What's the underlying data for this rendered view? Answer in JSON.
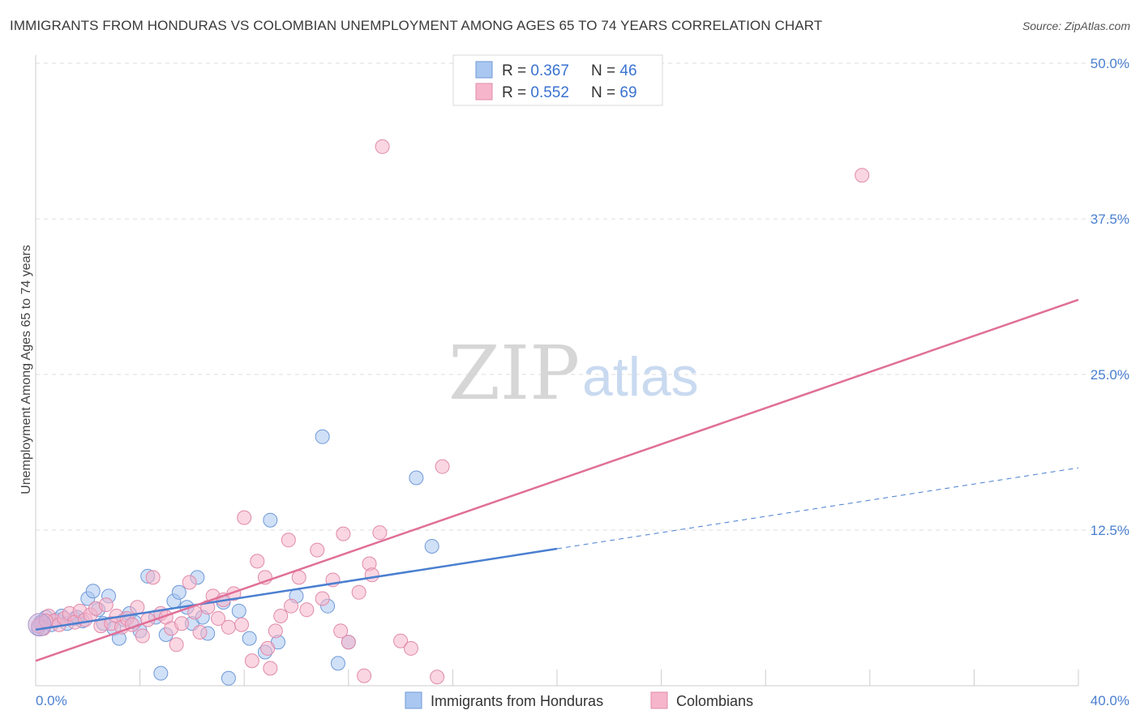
{
  "title": "IMMIGRANTS FROM HONDURAS VS COLOMBIAN UNEMPLOYMENT AMONG AGES 65 TO 74 YEARS CORRELATION CHART",
  "source": "Source: ZipAtlas.com",
  "watermark": {
    "zip": "ZIP",
    "atlas": "atlas"
  },
  "colors": {
    "blue": "#4a7fd0",
    "blue_fill": "#a9c7f0",
    "pink": "#e06f97",
    "pink_fill": "#f6b5cb",
    "grid": "#dddddd"
  },
  "chart_data": {
    "type": "scatter",
    "title": "IMMIGRANTS FROM HONDURAS VS COLOMBIAN UNEMPLOYMENT AMONG AGES 65 TO 74 YEARS CORRELATION CHART",
    "xlabel": "",
    "ylabel": "Unemployment Among Ages 65 to 74 years",
    "xlim": [
      0,
      40
    ],
    "ylim": [
      0,
      50
    ],
    "x_tick_labels": [
      "0.0%",
      "40.0%"
    ],
    "y_ticks": [
      12.5,
      25.0,
      37.5,
      50.0
    ],
    "y_tick_labels": [
      "12.5%",
      "25.0%",
      "37.5%",
      "50.0%"
    ],
    "legend": [
      {
        "name": "Immigrants from Honduras",
        "r_label": "R = ",
        "r": "0.367",
        "n_label": "N = ",
        "n": "46"
      },
      {
        "name": "Colombians",
        "r_label": "R = ",
        "r": "0.552",
        "n_label": "N = ",
        "n": "69"
      }
    ],
    "series": [
      {
        "name": "Immigrants from Honduras",
        "color": "#4a7fd0",
        "trend": {
          "x0": 0,
          "y0": 4.5,
          "x1": 20,
          "y1": 11.0,
          "x_dash_end": 40,
          "y_dash_end": 17.5
        },
        "points": [
          [
            0.2,
            5.1
          ],
          [
            0.4,
            5.5
          ],
          [
            0.6,
            4.9
          ],
          [
            0.8,
            5.3
          ],
          [
            1.0,
            5.6
          ],
          [
            1.2,
            5.0
          ],
          [
            1.5,
            5.4
          ],
          [
            1.8,
            5.2
          ],
          [
            2.0,
            7.0
          ],
          [
            2.2,
            7.6
          ],
          [
            2.4,
            6.1
          ],
          [
            2.6,
            5.0
          ],
          [
            2.8,
            7.2
          ],
          [
            3.0,
            4.6
          ],
          [
            3.2,
            3.8
          ],
          [
            3.4,
            5.3
          ],
          [
            3.6,
            5.8
          ],
          [
            3.8,
            5.1
          ],
          [
            4.0,
            4.4
          ],
          [
            4.3,
            8.8
          ],
          [
            4.6,
            5.5
          ],
          [
            4.8,
            1.0
          ],
          [
            5.0,
            4.1
          ],
          [
            5.3,
            6.8
          ],
          [
            5.5,
            7.5
          ],
          [
            5.8,
            6.3
          ],
          [
            6.0,
            5.0
          ],
          [
            6.2,
            8.7
          ],
          [
            6.4,
            5.5
          ],
          [
            6.6,
            4.2
          ],
          [
            7.2,
            6.7
          ],
          [
            7.4,
            0.6
          ],
          [
            7.8,
            6.0
          ],
          [
            8.2,
            3.8
          ],
          [
            8.8,
            2.7
          ],
          [
            9.0,
            13.3
          ],
          [
            9.3,
            3.5
          ],
          [
            10.0,
            7.2
          ],
          [
            11.0,
            20.0
          ],
          [
            11.2,
            6.4
          ],
          [
            11.6,
            1.8
          ],
          [
            12.0,
            3.5
          ],
          [
            14.6,
            16.7
          ],
          [
            15.2,
            11.2
          ],
          [
            0.1,
            4.6
          ],
          [
            1.6,
            5.5
          ]
        ]
      },
      {
        "name": "Colombians",
        "color": "#e06f97",
        "trend": {
          "x0": 0,
          "y0": 2.0,
          "x1": 40,
          "y1": 31.0
        },
        "points": [
          [
            0.2,
            5.0
          ],
          [
            0.3,
            4.6
          ],
          [
            0.5,
            5.6
          ],
          [
            0.7,
            5.2
          ],
          [
            0.9,
            4.9
          ],
          [
            1.1,
            5.4
          ],
          [
            1.3,
            5.8
          ],
          [
            1.5,
            5.1
          ],
          [
            1.7,
            6.0
          ],
          [
            1.9,
            5.3
          ],
          [
            2.1,
            5.7
          ],
          [
            2.3,
            6.2
          ],
          [
            2.5,
            4.8
          ],
          [
            2.7,
            6.5
          ],
          [
            2.9,
            5.0
          ],
          [
            3.1,
            5.6
          ],
          [
            3.3,
            4.7
          ],
          [
            3.5,
            5.4
          ],
          [
            3.7,
            4.9
          ],
          [
            3.9,
            6.3
          ],
          [
            4.1,
            4.0
          ],
          [
            4.3,
            5.3
          ],
          [
            4.5,
            8.7
          ],
          [
            4.8,
            5.8
          ],
          [
            5.0,
            5.5
          ],
          [
            5.2,
            4.6
          ],
          [
            5.4,
            3.3
          ],
          [
            5.6,
            5.0
          ],
          [
            5.9,
            8.3
          ],
          [
            6.1,
            5.9
          ],
          [
            6.3,
            4.3
          ],
          [
            6.6,
            6.3
          ],
          [
            6.8,
            7.2
          ],
          [
            7.0,
            5.4
          ],
          [
            7.2,
            6.9
          ],
          [
            7.4,
            4.7
          ],
          [
            7.6,
            7.4
          ],
          [
            7.9,
            4.9
          ],
          [
            8.0,
            13.5
          ],
          [
            8.3,
            2.0
          ],
          [
            8.5,
            10.0
          ],
          [
            8.8,
            8.7
          ],
          [
            8.9,
            3.0
          ],
          [
            9.0,
            1.4
          ],
          [
            9.2,
            4.4
          ],
          [
            9.4,
            5.6
          ],
          [
            9.7,
            11.7
          ],
          [
            9.8,
            6.4
          ],
          [
            10.1,
            8.7
          ],
          [
            10.4,
            6.1
          ],
          [
            10.8,
            10.9
          ],
          [
            11.0,
            7.0
          ],
          [
            11.4,
            8.5
          ],
          [
            11.7,
            4.4
          ],
          [
            11.8,
            12.2
          ],
          [
            12.0,
            3.5
          ],
          [
            12.4,
            7.5
          ],
          [
            12.6,
            0.8
          ],
          [
            12.8,
            9.8
          ],
          [
            12.9,
            8.9
          ],
          [
            13.2,
            12.3
          ],
          [
            13.3,
            43.3
          ],
          [
            14.0,
            3.6
          ],
          [
            14.4,
            3.0
          ],
          [
            15.4,
            0.7
          ],
          [
            15.6,
            17.6
          ],
          [
            31.7,
            41.0
          ],
          [
            0.1,
            4.8
          ],
          [
            0.4,
            5.2
          ]
        ]
      }
    ]
  }
}
